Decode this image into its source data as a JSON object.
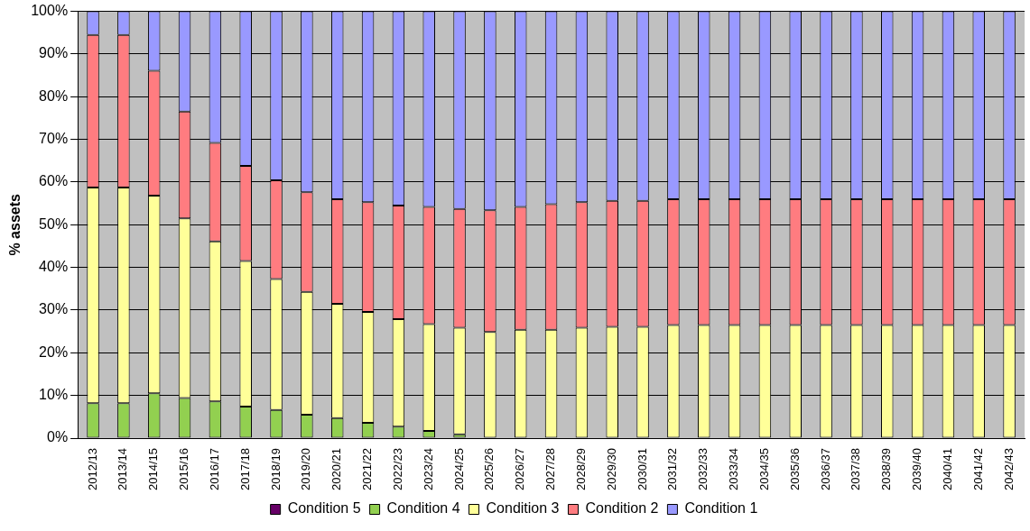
{
  "chart_data": {
    "type": "bar",
    "stacked": true,
    "ylabel": "% assets",
    "categories": [
      "2012/13",
      "2013/14",
      "2014/15",
      "2015/16",
      "2016/17",
      "2017/18",
      "2018/19",
      "2019/20",
      "2020/21",
      "2021/22",
      "2022/23",
      "2023/24",
      "2024/25",
      "2025/26",
      "2026/27",
      "2027/28",
      "2028/29",
      "2029/30",
      "2030/31",
      "2031/32",
      "2032/33",
      "2033/34",
      "2034/35",
      "2035/36",
      "2036/37",
      "2037/38",
      "2038/39",
      "2039/40",
      "2040/41",
      "2041/42",
      "2042/43"
    ],
    "series": [
      {
        "name": "Condition 5",
        "color": "#660066",
        "values": [
          0,
          0,
          0,
          0,
          0,
          0,
          0,
          0,
          0,
          0,
          0,
          0,
          0,
          0,
          0,
          0,
          0,
          0,
          0,
          0,
          0,
          0,
          0,
          0,
          0,
          0,
          0,
          0,
          0,
          0,
          0
        ]
      },
      {
        "name": "Condition 4",
        "color": "#92d050",
        "values": [
          8.2,
          8.2,
          10.5,
          9.4,
          8.6,
          7.4,
          6.6,
          5.5,
          4.7,
          3.6,
          2.7,
          1.7,
          0.9,
          0,
          0,
          0,
          0,
          0,
          0,
          0,
          0,
          0,
          0,
          0,
          0,
          0,
          0,
          0,
          0,
          0,
          0
        ]
      },
      {
        "name": "Condition 3",
        "color": "#ffff99",
        "values": [
          50.5,
          50.5,
          46.3,
          42.1,
          37.5,
          34.1,
          30.7,
          28.8,
          26.8,
          26.0,
          25.2,
          25.0,
          25.0,
          24.9,
          25.4,
          25.4,
          25.9,
          26.1,
          26.1,
          26.5,
          26.5,
          26.5,
          26.5,
          26.5,
          26.5,
          26.5,
          26.5,
          26.5,
          26.5,
          26.5,
          26.5
        ]
      },
      {
        "name": "Condition 2",
        "color": "#ff7c80",
        "values": [
          35.8,
          35.8,
          29.3,
          25.0,
          23.1,
          22.3,
          23.1,
          23.3,
          24.5,
          25.7,
          26.6,
          27.5,
          27.8,
          28.5,
          28.8,
          29.4,
          29.4,
          29.5,
          29.5,
          29.5,
          29.5,
          29.5,
          29.5,
          29.5,
          29.5,
          29.5,
          29.5,
          29.5,
          29.5,
          29.5,
          29.5
        ]
      },
      {
        "name": "Condition 1",
        "color": "#9999ff",
        "values": [
          5.5,
          5.5,
          13.9,
          23.5,
          30.8,
          36.2,
          39.6,
          42.4,
          44.0,
          44.7,
          45.5,
          45.8,
          46.3,
          46.6,
          45.8,
          45.2,
          44.7,
          44.4,
          44.4,
          44.0,
          44.0,
          44.0,
          44.0,
          44.0,
          44.0,
          44.0,
          44.0,
          44.0,
          44.0,
          44.0,
          44.0
        ]
      }
    ],
    "ylim": [
      0,
      100
    ],
    "yticks": [
      {
        "value": 0,
        "label": "0%"
      },
      {
        "value": 10,
        "label": "10%"
      },
      {
        "value": 20,
        "label": "20%"
      },
      {
        "value": 30,
        "label": "30%"
      },
      {
        "value": 40,
        "label": "40%"
      },
      {
        "value": 50,
        "label": "50%"
      },
      {
        "value": 60,
        "label": "60%"
      },
      {
        "value": 70,
        "label": "70%"
      },
      {
        "value": 80,
        "label": "80%"
      },
      {
        "value": 90,
        "label": "90%"
      },
      {
        "value": 100,
        "label": "100%"
      }
    ],
    "grid": "y",
    "legend": "bottom"
  }
}
